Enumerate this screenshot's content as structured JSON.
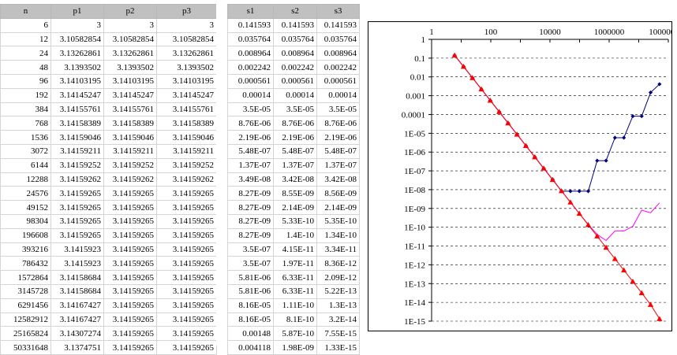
{
  "left_table": {
    "headers": [
      "n",
      "p1",
      "p2",
      "p3"
    ],
    "rows": [
      [
        "6",
        "3",
        "3",
        "3"
      ],
      [
        "12",
        "3.10582854",
        "3.10582854",
        "3.10582854"
      ],
      [
        "24",
        "3.13262861",
        "3.13262861",
        "3.13262861"
      ],
      [
        "48",
        "3.1393502",
        "3.1393502",
        "3.1393502"
      ],
      [
        "96",
        "3.14103195",
        "3.14103195",
        "3.14103195"
      ],
      [
        "192",
        "3.14145247",
        "3.14145247",
        "3.14145247"
      ],
      [
        "384",
        "3.14155761",
        "3.14155761",
        "3.14155761"
      ],
      [
        "768",
        "3.14158389",
        "3.14158389",
        "3.14158389"
      ],
      [
        "1536",
        "3.14159046",
        "3.14159046",
        "3.14159046"
      ],
      [
        "3072",
        "3.14159211",
        "3.14159211",
        "3.14159211"
      ],
      [
        "6144",
        "3.14159252",
        "3.14159252",
        "3.14159252"
      ],
      [
        "12288",
        "3.14159262",
        "3.14159262",
        "3.14159262"
      ],
      [
        "24576",
        "3.14159265",
        "3.14159265",
        "3.14159265"
      ],
      [
        "49152",
        "3.14159265",
        "3.14159265",
        "3.14159265"
      ],
      [
        "98304",
        "3.14159265",
        "3.14159265",
        "3.14159265"
      ],
      [
        "196608",
        "3.14159265",
        "3.14159265",
        "3.14159265"
      ],
      [
        "393216",
        "3.1415923",
        "3.14159265",
        "3.14159265"
      ],
      [
        "786432",
        "3.1415923",
        "3.14159265",
        "3.14159265"
      ],
      [
        "1572864",
        "3.14158684",
        "3.14159265",
        "3.14159265"
      ],
      [
        "3145728",
        "3.14158684",
        "3.14159265",
        "3.14159265"
      ],
      [
        "6291456",
        "3.14167427",
        "3.14159265",
        "3.14159265"
      ],
      [
        "12582912",
        "3.14167427",
        "3.14159265",
        "3.14159265"
      ],
      [
        "25165824",
        "3.14307274",
        "3.14159265",
        "3.14159265"
      ],
      [
        "50331648",
        "3.1374751",
        "3.14159265",
        "3.14159265"
      ]
    ]
  },
  "right_table": {
    "headers": [
      "s1",
      "s2",
      "s3"
    ],
    "rows": [
      [
        "0.141593",
        "0.141593",
        "0.141593"
      ],
      [
        "0.035764",
        "0.035764",
        "0.035764"
      ],
      [
        "0.008964",
        "0.008964",
        "0.008964"
      ],
      [
        "0.002242",
        "0.002242",
        "0.002242"
      ],
      [
        "0.000561",
        "0.000561",
        "0.000561"
      ],
      [
        "0.00014",
        "0.00014",
        "0.00014"
      ],
      [
        "3.5E-05",
        "3.5E-05",
        "3.5E-05"
      ],
      [
        "8.76E-06",
        "8.76E-06",
        "8.76E-06"
      ],
      [
        "2.19E-06",
        "2.19E-06",
        "2.19E-06"
      ],
      [
        "5.48E-07",
        "5.48E-07",
        "5.48E-07"
      ],
      [
        "1.37E-07",
        "1.37E-07",
        "1.37E-07"
      ],
      [
        "3.49E-08",
        "3.42E-08",
        "3.42E-08"
      ],
      [
        "8.27E-09",
        "8.55E-09",
        "8.56E-09"
      ],
      [
        "8.27E-09",
        "2.14E-09",
        "2.14E-09"
      ],
      [
        "8.27E-09",
        "5.33E-10",
        "5.35E-10"
      ],
      [
        "8.27E-09",
        "1.4E-10",
        "1.34E-10"
      ],
      [
        "3.5E-07",
        "4.15E-11",
        "3.34E-11"
      ],
      [
        "3.5E-07",
        "1.97E-11",
        "8.36E-12"
      ],
      [
        "5.81E-06",
        "6.33E-11",
        "2.09E-12"
      ],
      [
        "5.81E-06",
        "6.33E-11",
        "5.22E-13"
      ],
      [
        "8.16E-05",
        "1.11E-10",
        "1.3E-13"
      ],
      [
        "8.16E-05",
        "8.1E-10",
        "3.2E-14"
      ],
      [
        "0.00148",
        "5.87E-10",
        "7.55E-15"
      ],
      [
        "0.004118",
        "1.98E-09",
        "1.33E-15"
      ]
    ]
  },
  "chart_data": {
    "type": "line",
    "x_scale": "log",
    "y_scale": "log",
    "xlim": [
      1,
      100000000
    ],
    "ylim": [
      1e-15,
      1
    ],
    "x_tick_labels": [
      "1",
      "100",
      "10000",
      "1000000",
      "100000000"
    ],
    "y_tick_labels": [
      "1",
      "0.1",
      "0.01",
      "0.001",
      "0.0001",
      "1E-05",
      "1E-06",
      "1E-07",
      "1E-08",
      "1E-09",
      "1E-10",
      "1E-11",
      "1E-12",
      "1E-13",
      "1E-14",
      "1E-15"
    ],
    "grid": "horizontal",
    "x": [
      6,
      12,
      24,
      48,
      96,
      192,
      384,
      768,
      1536,
      3072,
      6144,
      12288,
      24576,
      49152,
      98304,
      196608,
      393216,
      786432,
      1572864,
      3145728,
      6291456,
      12582912,
      25165824,
      50331648
    ],
    "series": [
      {
        "color": "#000080",
        "marker": "diamond",
        "values": [
          0.141593,
          0.035764,
          0.008964,
          0.002242,
          0.000561,
          0.00014,
          3.5e-05,
          8.76e-06,
          2.19e-06,
          5.48e-07,
          1.37e-07,
          3.49e-08,
          8.27e-09,
          8.27e-09,
          8.27e-09,
          8.27e-09,
          3.5e-07,
          3.5e-07,
          5.81e-06,
          5.81e-06,
          8.16e-05,
          8.16e-05,
          0.00148,
          0.004118
        ]
      },
      {
        "color": "#ff00ff",
        "marker": "none",
        "values": [
          0.141593,
          0.035764,
          0.008964,
          0.002242,
          0.000561,
          0.00014,
          3.5e-05,
          8.76e-06,
          2.19e-06,
          5.48e-07,
          1.37e-07,
          3.42e-08,
          8.55e-09,
          2.14e-09,
          5.33e-10,
          1.4e-10,
          4.15e-11,
          1.97e-11,
          6.33e-11,
          6.33e-11,
          1.11e-10,
          8.1e-10,
          5.87e-10,
          1.98e-09
        ]
      },
      {
        "color": "#ff0000",
        "marker": "triangle",
        "values": [
          0.141593,
          0.035764,
          0.008964,
          0.002242,
          0.000561,
          0.00014,
          3.5e-05,
          8.76e-06,
          2.19e-06,
          5.48e-07,
          1.37e-07,
          3.42e-08,
          8.56e-09,
          2.14e-09,
          5.35e-10,
          1.34e-10,
          3.34e-11,
          8.36e-12,
          2.09e-12,
          5.22e-13,
          1.3e-13,
          3.2e-14,
          7.55e-15,
          1.33e-15
        ]
      }
    ]
  }
}
